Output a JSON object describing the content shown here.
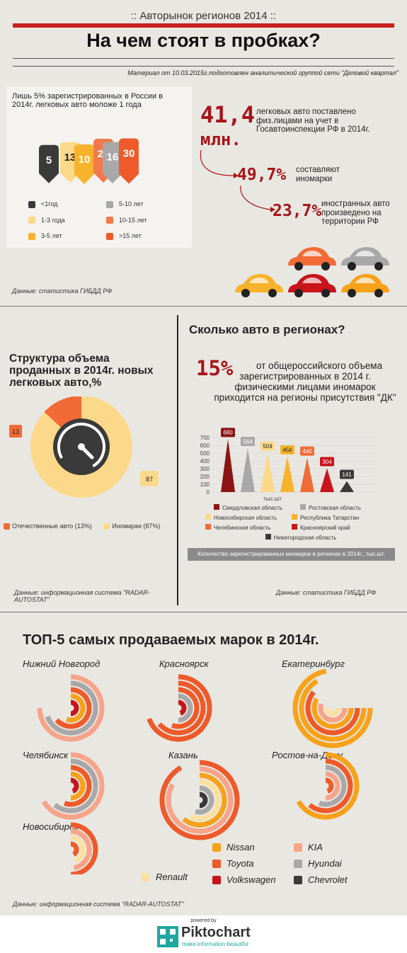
{
  "header": {
    "kicker": ":: Авторынок регионов 2014 ::",
    "title": "На чем стоят в пробках?",
    "material": "Материал от 10.03.2015г.подготовлен аналитической группой сети \"Деловой квартал\""
  },
  "colors": {
    "accent_red": "#c8201c",
    "dark": "#3a3a3a",
    "light_yellow": "#fcd98a",
    "yellow": "#f7b32b",
    "grey": "#a8a8a8",
    "orange": "#f26a36",
    "orange_red": "#ee5a2a"
  },
  "age_block": {
    "intro": "Лишь 5% зарегистрированных в России в 2014г. легковых авто моложе 1 года",
    "source": "Данные: статистика ГИБДД РФ",
    "legend": [
      {
        "label": "<1год",
        "color": "#3a3a3a"
      },
      {
        "label": "1-3 года",
        "color": "#fcd98a"
      },
      {
        "label": "3-5 лет",
        "color": "#f7b32b"
      },
      {
        "label": "5-10 лет",
        "color": "#a8a8a8"
      },
      {
        "label": "10-15 лет",
        "color": "#f27a4a"
      },
      {
        "label": ">15 лет",
        "color": "#ee5a2a"
      }
    ]
  },
  "stats": {
    "num1": "41,4",
    "num1_unit": "млн.",
    "text1": "легковых авто поставлено физ.лицами на учет в Госавтоинспекции РФ в 2014г.",
    "num2": "49,7%",
    "text2": "составляют иномарки",
    "num3": "23,7%",
    "text3": "иностранных авто произведено на территории РФ"
  },
  "structure": {
    "title": "Структура объема проданных в 2014г. новых легковых авто,%",
    "source": "Данные: информационная система \"RADAR-AUTOSTAT\"",
    "label_small": "13",
    "label_big": "87",
    "legend": [
      {
        "label": "Отечественные авто (13%)",
        "color": "#f26a36"
      },
      {
        "label": "Иномарки (87%)",
        "color": "#fcd98a"
      }
    ]
  },
  "regions": {
    "title": "Сколько авто в регионах?",
    "percent": "15%",
    "text": "от общероссийского объема зарегистрированных в 2014 г. физическими лицами иномарок приходится на регионы присутствия \"ДК\"",
    "caption": "Количество зарегистрированных иномарок в регионах в 2014г., тыс.шт.",
    "source": "Данные: статистика ГИБДД РФ"
  },
  "top5": {
    "title": "ТОП-5 самых продаваемых марок в 2014г.",
    "cities": [
      "Нижний Новгород",
      "Красноярск",
      "Екатеринбург",
      "Челябинск",
      "Казань",
      "Ростов-на-Дону",
      "Новосибирск"
    ],
    "brands": [
      {
        "label": "Nissan",
        "color": "#f7a21b"
      },
      {
        "label": "Toyota",
        "color": "#ee5a2a"
      },
      {
        "label": "Volkswagen",
        "color": "#c8141a"
      },
      {
        "label": "KIA",
        "color": "#f7a48a"
      },
      {
        "label": "Hyundai",
        "color": "#a8a8a8"
      },
      {
        "label": "Chevrolet",
        "color": "#3a3a3a"
      },
      {
        "label": "Renault",
        "color": "#fce0a0"
      }
    ],
    "source": "Данные: информационная система \"RADAR-AUTOSTAT\""
  },
  "footer": {
    "powered": "powered by",
    "brand": "Piktochart",
    "tagline": "make information beautiful"
  },
  "chart_data": [
    {
      "type": "bar",
      "title": "Лишь 5% зарегистрированных в России в 2014г. легковых авто моложе 1 года",
      "categories": [
        "<1год",
        "1-3 года",
        "3-5 лет",
        "5-10 лет",
        "10-15 лет",
        ">15 лет"
      ],
      "values": [
        5,
        13,
        10,
        16,
        25,
        30
      ]
    },
    {
      "type": "pie",
      "title": "Структура объема проданных в 2014г. новых легковых авто,%",
      "categories": [
        "Отечественные авто",
        "Иномарки"
      ],
      "values": [
        13,
        87
      ]
    },
    {
      "type": "bar",
      "title": "Количество зарегистрированных иномарок в регионах в 2014г., тыс.шт.",
      "ylabel": "тыс.шт",
      "ylim": [
        0,
        700
      ],
      "yticks": [
        0,
        100,
        200,
        300,
        400,
        500,
        600,
        700
      ],
      "categories": [
        "Свердловская область",
        "Ростовская область",
        "Новосибирская область",
        "Республика Татарстан",
        "Челябинская область",
        "Красноярский край",
        "Нижегородская область"
      ],
      "values": [
        680,
        564,
        504,
        456,
        440,
        304,
        141
      ],
      "colors": [
        "#8c1414",
        "#a8a8a8",
        "#fcd98a",
        "#f7b32b",
        "#f26a36",
        "#c8141a",
        "#3a3a3a"
      ]
    }
  ]
}
